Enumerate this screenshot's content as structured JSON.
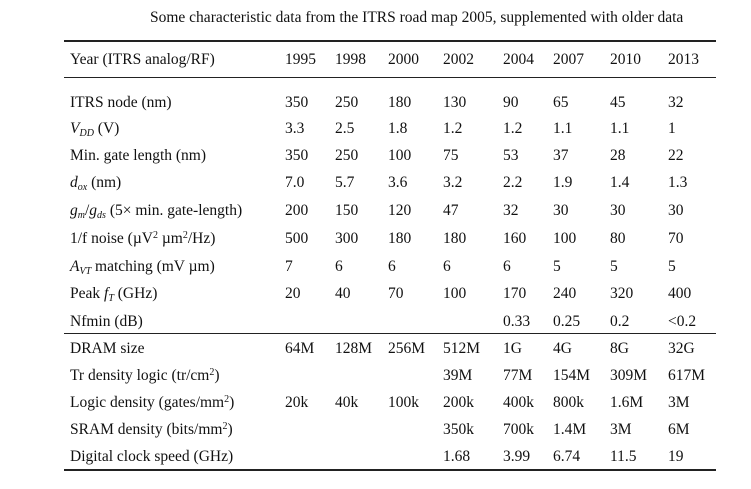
{
  "caption": "Some characteristic data from the ITRS road map 2005, supplemented with older data",
  "header": {
    "label": "Year (ITRS analog/RF)",
    "years": [
      "1995",
      "1998",
      "2000",
      "2002",
      "2004",
      "2007",
      "2010",
      "2013"
    ]
  },
  "rows": [
    {
      "label": "ITRS node (nm)",
      "values": [
        "350",
        "250",
        "180",
        "130",
        "90",
        "65",
        "45",
        "32"
      ]
    },
    {
      "label": "VDD (V)",
      "values": [
        "3.3",
        "2.5",
        "1.8",
        "1.2",
        "1.2",
        "1.1",
        "1.1",
        "1"
      ]
    },
    {
      "label": "Min. gate length (nm)",
      "values": [
        "350",
        "250",
        "100",
        "75",
        "53",
        "37",
        "28",
        "22"
      ]
    },
    {
      "label": "dox (nm)",
      "values": [
        "7.0",
        "5.7",
        "3.6",
        "3.2",
        "2.2",
        "1.9",
        "1.4",
        "1.3"
      ]
    },
    {
      "label": "gm/gds (5× min. gate-length)",
      "values": [
        "200",
        "150",
        "120",
        "47",
        "32",
        "30",
        "30",
        "30"
      ]
    },
    {
      "label": "1/f noise (µV2 µm2/Hz)",
      "values": [
        "500",
        "300",
        "180",
        "180",
        "160",
        "100",
        "80",
        "70"
      ]
    },
    {
      "label": "AVT matching (mV µm)",
      "values": [
        "7",
        "6",
        "6",
        "6",
        "6",
        "5",
        "5",
        "5"
      ]
    },
    {
      "label": "Peak fT (GHz)",
      "values": [
        "20",
        "40",
        "70",
        "100",
        "170",
        "240",
        "320",
        "400"
      ]
    },
    {
      "label": "Nfmin (dB)",
      "values": [
        "",
        "",
        "",
        "",
        "0.33",
        "0.25",
        "0.2",
        "<0.2"
      ]
    },
    {
      "label": "DRAM size",
      "values": [
        "64M",
        "128M",
        "256M",
        "512M",
        "1G",
        "4G",
        "8G",
        "32G"
      ]
    },
    {
      "label": "Tr density logic (tr/cm2)",
      "values": [
        "",
        "",
        "",
        "39M",
        "77M",
        "154M",
        "309M",
        "617M"
      ]
    },
    {
      "label": "Logic density (gates/mm2)",
      "values": [
        "20k",
        "40k",
        "100k",
        "200k",
        "400k",
        "800k",
        "1.6M",
        "3M"
      ]
    },
    {
      "label": "SRAM density (bits/mm2)",
      "values": [
        "",
        "",
        "",
        "350k",
        "700k",
        "1.4M",
        "3M",
        "6M"
      ]
    },
    {
      "label": "Digital clock speed (GHz)",
      "values": [
        "",
        "",
        "",
        "1.68",
        "3.99",
        "6.74",
        "11.5",
        "19"
      ]
    }
  ]
}
